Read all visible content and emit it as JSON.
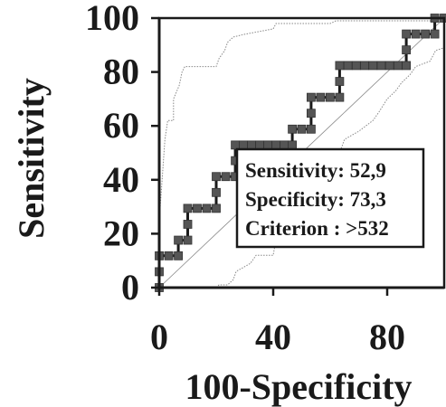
{
  "chart_data": {
    "type": "line",
    "title": "",
    "xlabel": "100-Specificity",
    "ylabel": "Sensitivity",
    "xlim": [
      0,
      100
    ],
    "ylim": [
      0,
      100
    ],
    "xticks": [
      0,
      40,
      80
    ],
    "yticks": [
      0,
      20,
      40,
      60,
      80,
      100
    ],
    "grid": false,
    "series": [
      {
        "role": "roc",
        "color": "#555555",
        "points": [
          [
            0,
            0
          ],
          [
            0,
            5.9
          ],
          [
            0,
            11.8
          ],
          [
            6.7,
            11.8
          ],
          [
            6.7,
            17.6
          ],
          [
            10,
            17.6
          ],
          [
            10,
            23.5
          ],
          [
            10,
            29.4
          ],
          [
            20,
            29.4
          ],
          [
            20,
            35.3
          ],
          [
            20,
            41.2
          ],
          [
            26.7,
            41.2
          ],
          [
            26.7,
            47.1
          ],
          [
            26.7,
            52.9
          ],
          [
            46.7,
            52.9
          ],
          [
            46.7,
            58.8
          ],
          [
            53.3,
            58.8
          ],
          [
            53.3,
            64.7
          ],
          [
            53.3,
            70.6
          ],
          [
            63.3,
            70.6
          ],
          [
            63.3,
            76.5
          ],
          [
            63.3,
            82.4
          ],
          [
            86.7,
            82.4
          ],
          [
            86.7,
            88.2
          ],
          [
            86.7,
            94.1
          ],
          [
            96.7,
            94.1
          ],
          [
            96.7,
            100
          ],
          [
            100,
            100
          ]
        ]
      },
      {
        "role": "upper-confidence-bound",
        "color": "#888888",
        "points": [
          [
            0,
            3
          ],
          [
            0,
            25
          ],
          [
            1,
            40
          ],
          [
            2,
            55
          ],
          [
            3,
            62
          ],
          [
            5,
            62
          ],
          [
            5,
            70
          ],
          [
            7,
            75
          ],
          [
            8,
            80
          ],
          [
            9,
            82
          ],
          [
            20,
            82
          ],
          [
            21,
            85
          ],
          [
            23,
            88
          ],
          [
            24,
            91
          ],
          [
            26,
            93
          ],
          [
            30,
            94
          ],
          [
            40,
            96
          ],
          [
            41,
            98
          ],
          [
            60,
            98
          ],
          [
            62,
            99
          ],
          [
            98,
            99
          ],
          [
            98,
            100
          ],
          [
            100,
            100
          ]
        ]
      },
      {
        "role": "lower-confidence-bound",
        "color": "#888888",
        "points": [
          [
            0,
            0
          ],
          [
            20,
            0
          ],
          [
            21,
            1
          ],
          [
            24,
            1
          ],
          [
            26,
            3
          ],
          [
            27,
            6
          ],
          [
            32,
            9
          ],
          [
            34,
            12
          ],
          [
            40,
            12
          ],
          [
            41,
            18
          ],
          [
            46,
            22
          ],
          [
            48,
            25
          ],
          [
            53,
            30
          ],
          [
            55,
            35
          ],
          [
            57,
            40
          ],
          [
            60,
            42
          ],
          [
            62,
            47
          ],
          [
            64,
            52
          ],
          [
            65,
            55
          ],
          [
            70,
            58
          ],
          [
            75,
            62
          ],
          [
            77,
            65
          ],
          [
            80,
            70
          ],
          [
            83,
            73
          ],
          [
            85,
            76
          ],
          [
            88,
            79
          ],
          [
            90,
            82
          ],
          [
            95,
            84
          ],
          [
            97,
            88
          ],
          [
            100,
            89
          ]
        ]
      }
    ],
    "diagonal": [
      [
        0,
        0
      ],
      [
        100,
        100
      ]
    ],
    "annotation": {
      "lines": [
        "Sensitivity: 52,9",
        "Specificity: 73,3",
        "Criterion : >532"
      ]
    }
  }
}
